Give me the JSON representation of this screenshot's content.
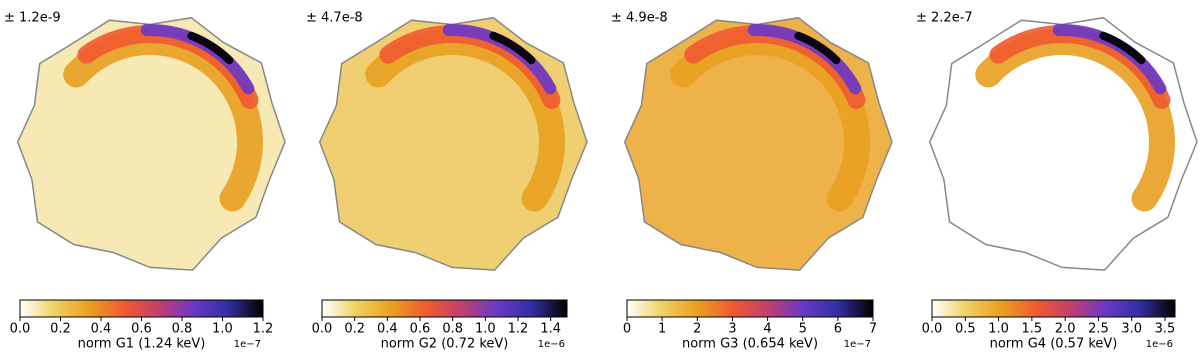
{
  "chart_data": [
    {
      "type": "map",
      "annotation": "± 1.2e-9",
      "xlabel": "norm G1 (1.24 keV)",
      "offset_text": "1e−7",
      "colormap": [
        "#ffffff",
        "#f0d060",
        "#e8a020",
        "#f05a30",
        "#c04070",
        "#6a38c8",
        "#3030a0",
        "#000000"
      ],
      "xlim": [
        0,
        1.2
      ],
      "xticks": [
        {
          "value": 0,
          "label": "0.0"
        },
        0.2,
        0.4,
        0.6,
        0.8,
        {
          "value": 1,
          "label": "1.0"
        },
        1.2
      ]
    },
    {
      "type": "map",
      "annotation": "± 4.7e-8",
      "xlabel": "norm G2 (0.72 keV)",
      "offset_text": "1e−6",
      "colormap": [
        "#ffffff",
        "#f0d060",
        "#e8a020",
        "#f05a30",
        "#c04070",
        "#6a38c8",
        "#3030a0",
        "#000000"
      ],
      "xlim": [
        0,
        1.5
      ],
      "xticks": [
        {
          "value": 0,
          "label": "0.0"
        },
        0.2,
        0.4,
        0.6,
        0.8,
        {
          "value": 1,
          "label": "1.0"
        },
        1.2,
        1.4
      ]
    },
    {
      "type": "map",
      "annotation": "± 4.9e-8",
      "xlabel": "norm G3 (0.654 keV)",
      "offset_text": "1e−7",
      "colormap": [
        "#ffffff",
        "#f0d060",
        "#e8a020",
        "#f05a30",
        "#c04070",
        "#6a38c8",
        "#3030a0",
        "#000000"
      ],
      "xlim": [
        0,
        7
      ],
      "xticks": [
        0,
        1,
        2,
        3,
        4,
        5,
        6,
        7
      ]
    },
    {
      "type": "map",
      "annotation": "± 2.2e-7",
      "xlabel": "norm G4 (0.57 keV)",
      "offset_text": "1e−6",
      "colormap": [
        "#ffffff",
        "#f0d060",
        "#e8a020",
        "#f05a30",
        "#c04070",
        "#6a38c8",
        "#3030a0",
        "#000000"
      ],
      "xlim": [
        0,
        3.65
      ],
      "xticks": [
        {
          "value": 0,
          "label": "0.0"
        },
        0.5,
        {
          "value": 1,
          "label": "1.0"
        },
        1.5,
        {
          "value": 2,
          "label": "2.0"
        },
        2.5,
        {
          "value": 3,
          "label": "3.0"
        },
        3.5
      ]
    }
  ]
}
